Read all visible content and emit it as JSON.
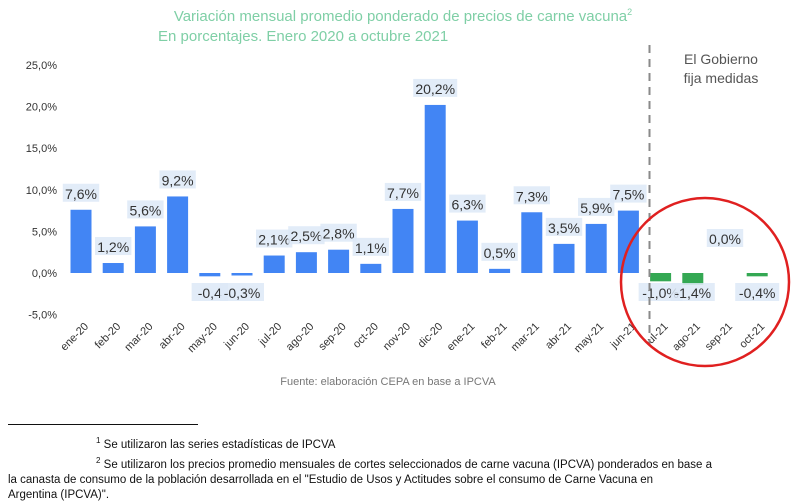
{
  "chart_data": {
    "type": "bar",
    "title": "Variación mensual promedio ponderado de precios de carne vacuna",
    "title_sup": "2",
    "subtitle": "En porcentajes. Enero 2020 a octubre 2021",
    "categories": [
      "ene-20",
      "feb-20",
      "mar-20",
      "abr-20",
      "may-20",
      "jun-20",
      "jul-20",
      "ago-20",
      "sep-20",
      "oct-20",
      "nov-20",
      "dic-20",
      "ene-21",
      "feb-21",
      "mar-21",
      "abr-21",
      "may-21",
      "jun-21",
      "jul-21",
      "ago-21",
      "sep-21",
      "oct-21"
    ],
    "values": [
      7.6,
      1.2,
      5.6,
      9.2,
      -0.4,
      -0.3,
      2.1,
      2.5,
      2.8,
      1.1,
      7.7,
      20.2,
      6.3,
      0.5,
      7.3,
      3.5,
      5.9,
      7.5,
      -1.0,
      -1.4,
      0.0,
      -0.4
    ],
    "data_labels": [
      "7,6%",
      "1,2%",
      "5,6%",
      "9,2%",
      "-0,4",
      "-0,3%",
      "2,1%",
      "2,5%",
      "2,8%",
      "1,1%",
      "7,7%",
      "20,2%",
      "6,3%",
      "0,5%",
      "7,3%",
      "3,5%",
      "5,9%",
      "7,5%",
      "-1,0%",
      "-1,4%",
      "0,0%",
      "-0,4%"
    ],
    "y_ticks": [
      -5,
      0,
      5,
      10,
      15,
      20,
      25
    ],
    "y_tick_labels": [
      "-5,0%",
      "0,0%",
      "5,0%",
      "10,0%",
      "15,0%",
      "20,0%",
      "25,0%"
    ],
    "ylim": [
      -5,
      25
    ],
    "xlabel": "",
    "ylabel": "",
    "colors": {
      "default": "#4285f4",
      "highlight": "#34a853"
    },
    "highlight_from_index": 18,
    "annotation": {
      "lines": [
        "El Gobierno",
        "fija medidas"
      ]
    },
    "source": "Fuente: elaboración CEPA en base a IPCVA",
    "circle_color": "#e02020"
  },
  "footnotes": {
    "note1_num": "1",
    "note1_text": " Se utilizaron las series estadísticas de IPCVA",
    "note2_num": "2",
    "note2_line1": " Se utilizaron los precios promedio mensuales de cortes seleccionados de carne vacuna (IPCVA) ponderados en base a",
    "note2_line2": "la canasta de consumo de la población desarrollada en el \"Estudio de Usos y Actitudes sobre el consumo de Carne Vacuna en",
    "note2_line3": "Argentina (IPCVA)\"."
  }
}
